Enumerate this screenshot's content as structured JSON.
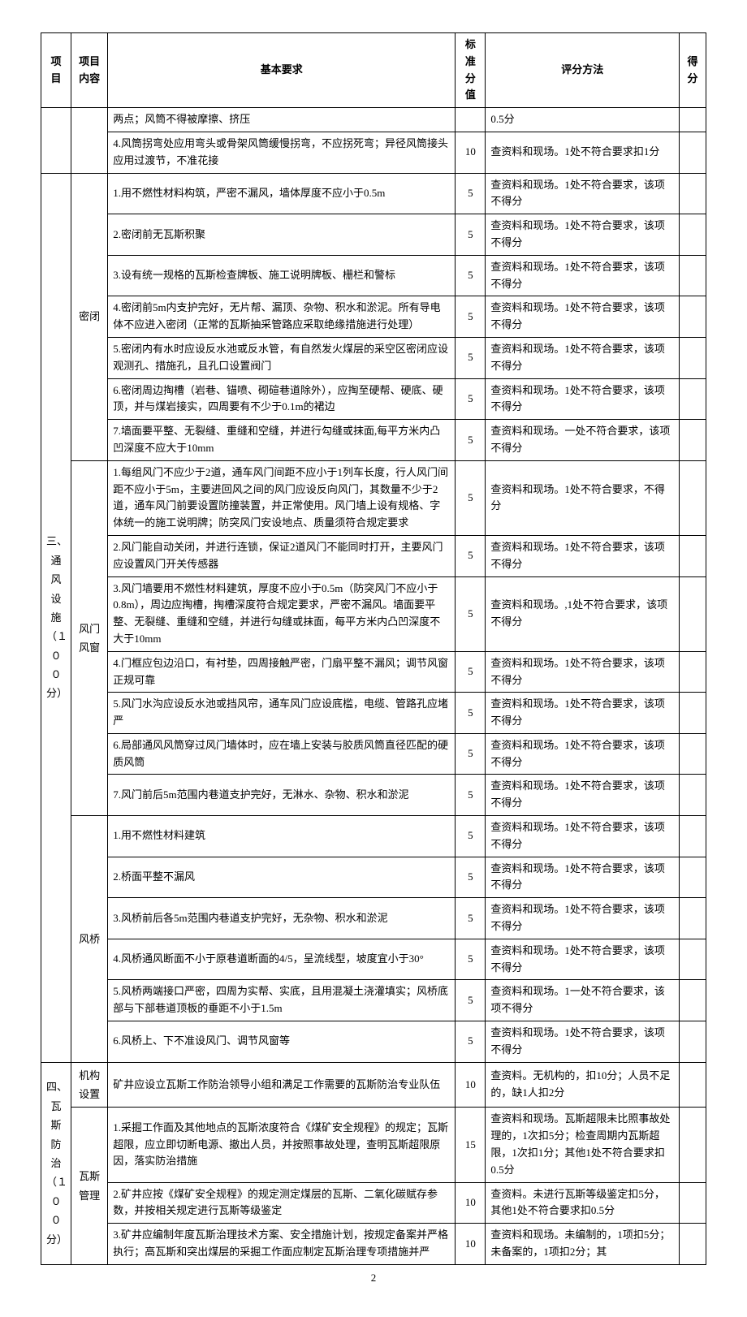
{
  "headers": {
    "project": "项目",
    "content": "项目内容",
    "requirement": "基本要求",
    "score": "标准分值",
    "method": "评分方法",
    "result": "得分"
  },
  "sections": [
    {
      "project": "",
      "groups": [
        {
          "content": "",
          "rows": [
            {
              "requirement": "两点；风筒不得被摩擦、挤压",
              "score": "",
              "method": "0.5分"
            },
            {
              "requirement": "4.风筒拐弯处应用弯头或骨架风筒缓慢拐弯，不应拐死弯；异径风筒接头应用过渡节，不准花接",
              "score": "10",
              "method": "查资料和现场。1处不符合要求扣1分"
            }
          ]
        }
      ]
    },
    {
      "project": "三、通风设施（１００分）",
      "groups": [
        {
          "content": "密闭",
          "rows": [
            {
              "requirement": "1.用不燃性材料构筑，严密不漏风，墙体厚度不应小于0.5m",
              "score": "5",
              "method": "查资料和现场。1处不符合要求，该项不得分"
            },
            {
              "requirement": "2.密闭前无瓦斯积聚",
              "score": "5",
              "method": "查资料和现场。1处不符合要求，该项不得分"
            },
            {
              "requirement": "3.设有统一规格的瓦斯检查牌板、施工说明牌板、栅栏和警标",
              "score": "5",
              "method": "查资料和现场。1处不符合要求，该项不得分"
            },
            {
              "requirement": "4.密闭前5m内支护完好，无片帮、漏顶、杂物、积水和淤泥。所有导电体不应进入密闭（正常的瓦斯抽采管路应采取绝缘措施进行处理）",
              "score": "5",
              "method": "查资料和现场。1处不符合要求，该项不得分"
            },
            {
              "requirement": "5.密闭内有水时应设反水池或反水管，有自然发火煤层的采空区密闭应设观测孔、措施孔，且孔口设置阀门",
              "score": "5",
              "method": "查资料和现场。1处不符合要求，该项不得分"
            },
            {
              "requirement": "6.密闭周边掏槽（岩巷、锚喷、砌碹巷道除外），应掏至硬帮、硬底、硬顶，并与煤岩接实，四周要有不少于0.1m的裙边",
              "score": "5",
              "method": "查资料和现场。1处不符合要求，该项不得分"
            },
            {
              "requirement": "7.墙面要平整、无裂缝、重缝和空缝，并进行勾缝或抹面,每平方米内凸凹深度不应大于10mm",
              "score": "5",
              "method": "查资料和现场。一处不符合要求，该项不得分"
            }
          ]
        },
        {
          "content": "风门风窗",
          "rows": [
            {
              "requirement": "1.每组风门不应少于2道，通车风门间距不应小于1列车长度，行人风门间距不应小于5m，主要进回风之间的风门应设反向风门，其数量不少于2道，通车风门前要设置防撞装置，并正常使用。风门墙上设有规格、字体统一的施工说明牌；防突风门安设地点、质量须符合规定要求",
              "score": "5",
              "method": "查资料和现场。1处不符合要求，不得分"
            },
            {
              "requirement": "2.风门能自动关闭，并进行连锁，保证2道风门不能同时打开，主要风门应设置风门开关传感器",
              "score": "5",
              "method": "查资料和现场。1处不符合要求，该项不得分"
            },
            {
              "requirement": "3.风门墙要用不燃性材料建筑，厚度不应小于0.5m（防突风门不应小于0.8m），周边应掏槽，掏槽深度符合规定要求，严密不漏风。墙面要平整、无裂缝、重缝和空缝，并进行勾缝或抹面，每平方米内凸凹深度不大于10mm",
              "score": "5",
              "method": "查资料和现场。,1处不符合要求，该项不得分"
            },
            {
              "requirement": "4.门框应包边沿口，有衬垫，四周接触严密，门扇平整不漏风；调节风窗正规可靠",
              "score": "5",
              "method": "查资料和现场。1处不符合要求，该项不得分"
            },
            {
              "requirement": "5.风门水沟应设反水池或挡风帘，通车风门应设底槛，电缆、管路孔应堵严",
              "score": "5",
              "method": "查资料和现场。1处不符合要求，该项不得分"
            },
            {
              "requirement": "6.局部通风风筒穿过风门墙体时，应在墙上安装与胶质风筒直径匹配的硬质风筒",
              "score": "5",
              "method": "查资料和现场。1处不符合要求，该项不得分"
            },
            {
              "requirement": "7.风门前后5m范围内巷道支护完好，无淋水、杂物、积水和淤泥",
              "score": "5",
              "method": "查资料和现场。1处不符合要求，该项不得分"
            }
          ]
        },
        {
          "content": "风桥",
          "rows": [
            {
              "requirement": "1.用不燃性材料建筑",
              "score": "5",
              "method": "查资料和现场。1处不符合要求，该项不得分"
            },
            {
              "requirement": "2.桥面平整不漏风",
              "score": "5",
              "method": "查资料和现场。1处不符合要求，该项不得分"
            },
            {
              "requirement": "3.风桥前后各5m范围内巷道支护完好，无杂物、积水和淤泥",
              "score": "5",
              "method": "查资料和现场。1处不符合要求，该项不得分"
            },
            {
              "requirement": "4.风桥通风断面不小于原巷道断面的4/5，呈流线型，坡度宜小于30°",
              "score": "5",
              "method": "查资料和现场。1处不符合要求，该项不得分"
            },
            {
              "requirement": "5.风桥两端接口严密，四周为实帮、实底，且用混凝土浇灌填实；风桥底部与下部巷道顶板的垂距不小于1.5m",
              "score": "5",
              "method": "查资料和现场。1一处不符合要求，该项不得分"
            },
            {
              "requirement": "6.风桥上、下不准设风门、调节风窗等",
              "score": "5",
              "method": "查资料和现场。1处不符合要求，该项不得分"
            }
          ]
        }
      ]
    },
    {
      "project": "四、瓦斯防治（１００分）",
      "groups": [
        {
          "content": "机构设置",
          "rows": [
            {
              "requirement": "矿井应设立瓦斯工作防治领导小组和满足工作需要的瓦斯防治专业队伍",
              "score": "10",
              "method": "查资料。无机构的，扣10分；人员不足的，缺1人扣2分"
            }
          ]
        },
        {
          "content": "瓦斯管理",
          "rows": [
            {
              "requirement": "1.采掘工作面及其他地点的瓦斯浓度符合《煤矿安全规程》的规定；瓦斯超限，应立即切断电源、撤出人员，并按照事故处理，查明瓦斯超限原因，落实防治措施",
              "score": "15",
              "method": "查资料和现场。瓦斯超限未比照事故处理的，1次扣5分；检查周期内瓦斯超限，1次扣1分；其他1处不符合要求扣0.5分"
            },
            {
              "requirement": "2.矿井应按《煤矿安全规程》的规定测定煤层的瓦斯、二氧化碳赋存参数，并按相关规定进行瓦斯等级鉴定",
              "score": "10",
              "method": "查资料。未进行瓦斯等级鉴定扣5分，其他1处不符合要求扣0.5分"
            },
            {
              "requirement": "3.矿井应编制年度瓦斯治理技术方案、安全措施计划，按规定备案并严格执行；高瓦斯和突出煤层的采掘工作面应制定瓦斯治理专项措施并严",
              "score": "10",
              "method": "查资料和现场。未编制的，1项扣5分；未备案的，1项扣2分；其"
            }
          ]
        }
      ]
    }
  ],
  "pageNumber": "2"
}
